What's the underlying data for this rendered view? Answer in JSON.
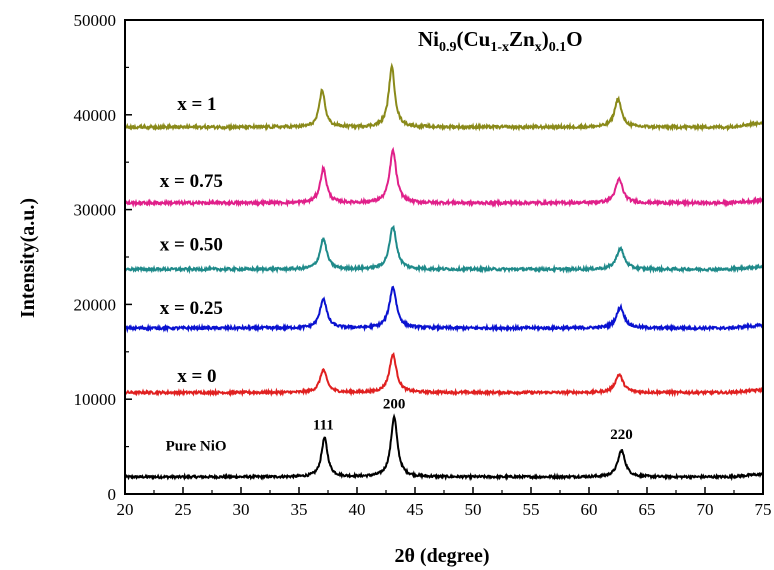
{
  "chart_data": {
    "type": "line",
    "title_parts": [
      "Ni",
      "0.9",
      "(Cu",
      "1-x",
      "Zn",
      "x",
      ")",
      "0.1",
      "O"
    ],
    "xlabel": "2θ (degree)",
    "ylabel": "Intensity(a.u.)",
    "xlim": [
      20,
      75
    ],
    "ylim": [
      0,
      50000
    ],
    "xticks": [
      "20",
      "25",
      "30",
      "35",
      "40",
      "45",
      "50",
      "55",
      "60",
      "65",
      "70",
      "75"
    ],
    "yticks": [
      "0",
      "10000",
      "20000",
      "30000",
      "40000",
      "50000"
    ],
    "grid": false,
    "peak_labels": [
      {
        "text": "111",
        "x": 37.1,
        "y": 6800
      },
      {
        "text": "200",
        "x": 43.2,
        "y": 9000
      },
      {
        "text": "220",
        "x": 62.8,
        "y": 5800
      }
    ],
    "series": [
      {
        "name": "Pure NiO",
        "color": "#000000",
        "baseline": 1800,
        "tilt": 300,
        "noise": 120,
        "label_x": 23.5,
        "label_y": 4600,
        "peaks": [
          {
            "x": 37.2,
            "h": 4100,
            "w": 0.32
          },
          {
            "x": 43.2,
            "h": 6300,
            "w": 0.34
          },
          {
            "x": 62.8,
            "h": 2800,
            "w": 0.38
          }
        ]
      },
      {
        "name": "x = 0",
        "color": "#e02020",
        "baseline": 10700,
        "tilt": 300,
        "noise": 130,
        "label_x": 24.5,
        "label_y": 11800,
        "peaks": [
          {
            "x": 37.1,
            "h": 2400,
            "w": 0.35
          },
          {
            "x": 43.1,
            "h": 4000,
            "w": 0.37
          },
          {
            "x": 62.6,
            "h": 1900,
            "w": 0.4
          }
        ]
      },
      {
        "name": "x = 0.25",
        "color": "#0a12d0",
        "baseline": 17500,
        "tilt": 300,
        "noise": 140,
        "label_x": 23.0,
        "label_y": 19000,
        "peaks": [
          {
            "x": 37.1,
            "h": 3100,
            "w": 0.35
          },
          {
            "x": 43.1,
            "h": 4300,
            "w": 0.37
          },
          {
            "x": 62.7,
            "h": 2200,
            "w": 0.4
          }
        ]
      },
      {
        "name": "x = 0.50",
        "color": "#1f8a8a",
        "baseline": 23700,
        "tilt": 300,
        "noise": 140,
        "label_x": 23.0,
        "label_y": 25700,
        "peaks": [
          {
            "x": 37.1,
            "h": 3200,
            "w": 0.35
          },
          {
            "x": 43.1,
            "h": 4500,
            "w": 0.37
          },
          {
            "x": 62.7,
            "h": 2200,
            "w": 0.4
          }
        ]
      },
      {
        "name": "x = 0.75",
        "color": "#e0208a",
        "baseline": 30700,
        "tilt": 300,
        "noise": 150,
        "label_x": 23.0,
        "label_y": 32400,
        "peaks": [
          {
            "x": 37.1,
            "h": 3600,
            "w": 0.33
          },
          {
            "x": 43.1,
            "h": 5500,
            "w": 0.35
          },
          {
            "x": 62.6,
            "h": 2500,
            "w": 0.38
          }
        ]
      },
      {
        "name": "x = 1",
        "color": "#8a8a1a",
        "baseline": 38700,
        "tilt": 500,
        "noise": 150,
        "label_x": 24.5,
        "label_y": 40500,
        "peaks": [
          {
            "x": 37.0,
            "h": 3900,
            "w": 0.3
          },
          {
            "x": 43.0,
            "h": 6300,
            "w": 0.32
          },
          {
            "x": 62.5,
            "h": 3000,
            "w": 0.35
          }
        ]
      }
    ]
  }
}
